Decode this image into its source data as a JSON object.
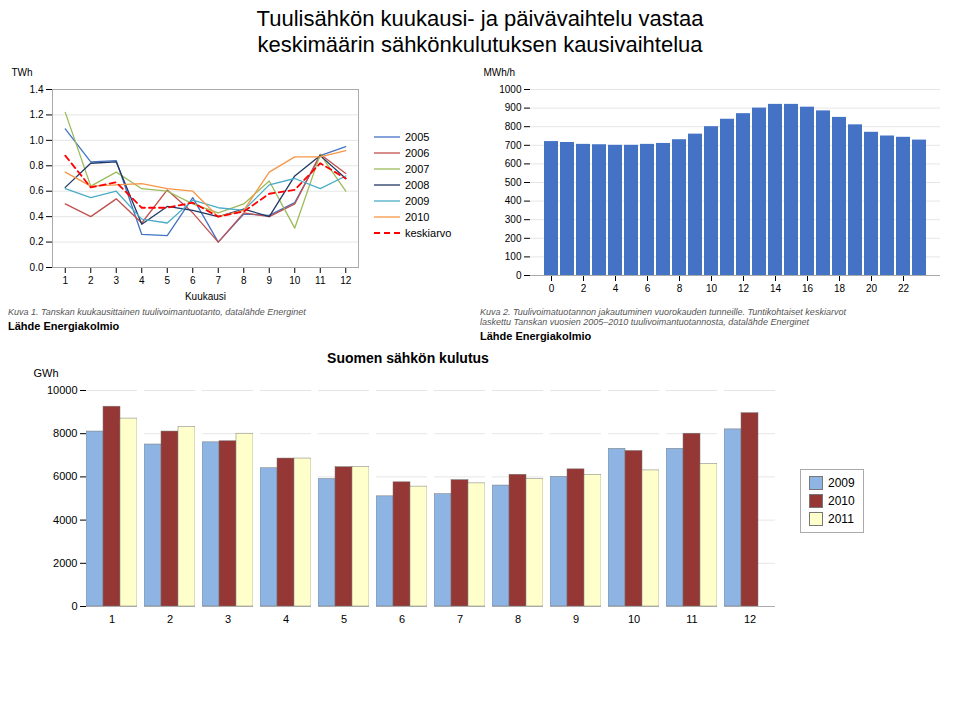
{
  "title": "Tuulisähkön kuukausi- ja päivävaihtelu vastaa\nkeskimäärin sähkönkulutuksen kausivaihtelua",
  "chart_data": [
    {
      "type": "line",
      "x": [
        1,
        2,
        3,
        4,
        5,
        6,
        7,
        8,
        9,
        10,
        11,
        12
      ],
      "xlabel": "Kuukausi",
      "ylabel": "TWh",
      "xlim": [
        0.5,
        12.5
      ],
      "xticks": [
        1,
        2,
        3,
        4,
        5,
        6,
        7,
        8,
        9,
        10,
        11,
        12
      ],
      "ylim": [
        0,
        1.4
      ],
      "yticks": [
        {
          "value": 0,
          "label": "0.0"
        },
        0.2,
        0.4,
        0.6,
        0.8,
        {
          "value": 1.0,
          "label": "1.0"
        },
        1.2,
        1.4
      ],
      "grid": true,
      "legend": "right",
      "series": [
        {
          "name": "2005",
          "color": "#4472c4",
          "values": [
            1.09,
            0.83,
            0.84,
            0.26,
            0.25,
            0.55,
            0.2,
            0.42,
            0.41,
            0.51,
            0.88,
            0.95
          ]
        },
        {
          "name": "2006",
          "color": "#c0504d",
          "values": [
            0.5,
            0.4,
            0.54,
            0.35,
            0.61,
            0.43,
            0.2,
            0.43,
            0.4,
            0.5,
            0.89,
            0.74
          ]
        },
        {
          "name": "2007",
          "color": "#9bbb59",
          "values": [
            1.22,
            0.64,
            0.75,
            0.62,
            0.6,
            0.5,
            0.43,
            0.5,
            0.68,
            0.31,
            0.89,
            0.6
          ]
        },
        {
          "name": "2008",
          "color": "#1f3864",
          "values": [
            0.63,
            0.82,
            0.83,
            0.34,
            0.48,
            0.45,
            0.4,
            0.46,
            0.4,
            0.72,
            0.88,
            0.7
          ]
        },
        {
          "name": "2009",
          "color": "#4bacc6",
          "values": [
            0.62,
            0.55,
            0.6,
            0.38,
            0.35,
            0.53,
            0.47,
            0.45,
            0.65,
            0.7,
            0.62,
            0.72
          ]
        },
        {
          "name": "2010",
          "color": "#f79646",
          "values": [
            0.75,
            0.64,
            0.65,
            0.66,
            0.62,
            0.6,
            0.4,
            0.45,
            0.75,
            0.87,
            0.87,
            0.92
          ]
        },
        {
          "name": "keskiarvo",
          "color": "#ff0000",
          "line_style": "dashed",
          "values": [
            0.88,
            0.63,
            0.67,
            0.47,
            0.47,
            0.51,
            0.4,
            0.44,
            0.58,
            0.61,
            0.82,
            0.7
          ]
        }
      ],
      "annotations": [
        "Kuva 1. Tanskan kuukausittainen tuulivoimantuotanto, datalähde Energinet",
        "Lähde Energiakolmio"
      ]
    },
    {
      "type": "bar",
      "categories": [
        0,
        1,
        2,
        3,
        4,
        5,
        6,
        7,
        8,
        9,
        10,
        11,
        12,
        13,
        14,
        15,
        16,
        17,
        18,
        19,
        20,
        21,
        22,
        23
      ],
      "values": [
        720,
        715,
        705,
        703,
        700,
        700,
        705,
        710,
        730,
        760,
        800,
        840,
        870,
        900,
        920,
        920,
        905,
        885,
        850,
        810,
        770,
        750,
        743,
        728
      ],
      "color": "#4472c4",
      "ylabel": "MWh/h",
      "xticks": [
        0,
        2,
        4,
        6,
        8,
        10,
        12,
        14,
        16,
        18,
        20,
        22
      ],
      "ylim": [
        0,
        1000
      ],
      "yticks": [
        0,
        100,
        200,
        300,
        400,
        500,
        600,
        700,
        800,
        900,
        1000
      ],
      "grid": true,
      "annotations": [
        "Kuva 2. Tuulivoimatuotannon jakautuminen vuorokauden tunneille. Tuntikohtaiset keskiarvot\nlaskettu Tanskan vuosien 2005–2010 tuulivoimantuotannosta, datalähde Energinet",
        "Lähde Energiakolmio"
      ]
    },
    {
      "type": "bar",
      "title": "Suomen sähkön kulutus",
      "categories": [
        1,
        2,
        3,
        4,
        5,
        6,
        7,
        8,
        9,
        10,
        11,
        12
      ],
      "ylabel": "GWh",
      "ylim": [
        0,
        10000
      ],
      "yticks": [
        0,
        2000,
        4000,
        6000,
        8000,
        10000
      ],
      "grid": true,
      "legend": "right",
      "series": [
        {
          "name": "2009",
          "color": "#8db4e2",
          "values": [
            8100,
            7500,
            7600,
            6400,
            5900,
            5100,
            5200,
            5600,
            6000,
            7300,
            7300,
            8200
          ]
        },
        {
          "name": "2010",
          "color": "#953735",
          "values": [
            9250,
            8100,
            7650,
            6850,
            6450,
            5750,
            5850,
            6100,
            6350,
            7200,
            8000,
            8950
          ]
        },
        {
          "name": "2011",
          "color": "#ffffcc",
          "values": [
            8700,
            8300,
            8000,
            6850,
            6450,
            5550,
            5700,
            5900,
            6100,
            6300,
            6600,
            null
          ]
        }
      ]
    }
  ]
}
